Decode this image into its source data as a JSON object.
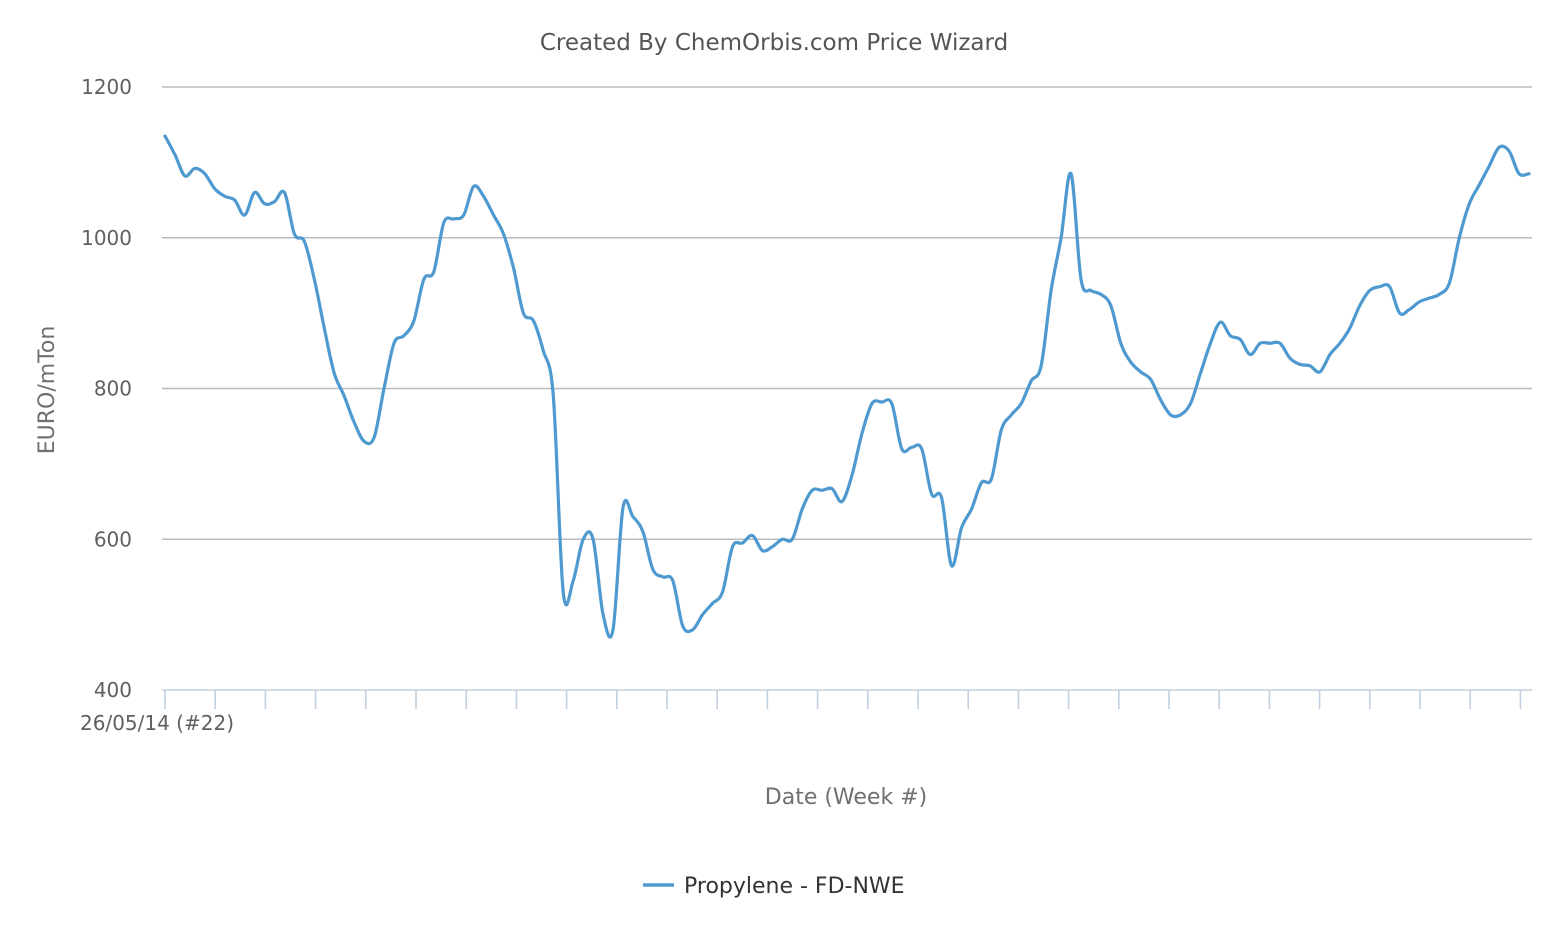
{
  "chart_data": {
    "type": "line",
    "title": "Created By ChemOrbis.com Price Wizard",
    "xlabel": "Date (Week #)",
    "ylabel": "EURO/mTon",
    "x_first_label": "26/05/14 (#22)",
    "ylim": [
      400,
      1200
    ],
    "yticks": [
      400,
      600,
      800,
      1000,
      1200
    ],
    "grid": true,
    "legend_position": "bottom-center",
    "series_color": "#4e99cf",
    "series": [
      {
        "name": "Propylene - FD-NWE",
        "values": [
          1135,
          1110,
          1082,
          1092,
          1085,
          1065,
          1055,
          1050,
          1030,
          1060,
          1045,
          1048,
          1060,
          1005,
          995,
          945,
          880,
          820,
          790,
          755,
          730,
          735,
          800,
          860,
          870,
          890,
          945,
          955,
          1020,
          1025,
          1030,
          1068,
          1055,
          1030,
          1005,
          960,
          900,
          890,
          850,
          790,
          530,
          545,
          600,
          600,
          500,
          480,
          642,
          630,
          610,
          560,
          550,
          545,
          485,
          480,
          500,
          515,
          530,
          590,
          595,
          605,
          585,
          590,
          600,
          600,
          640,
          665,
          665,
          667,
          650,
          685,
          740,
          780,
          782,
          780,
          720,
          722,
          720,
          660,
          655,
          565,
          615,
          640,
          675,
          680,
          745,
          765,
          780,
          810,
          830,
          930,
          1000,
          1085,
          945,
          930,
          925,
          910,
          860,
          835,
          822,
          812,
          785,
          765,
          765,
          780,
          820,
          860,
          888,
          870,
          865,
          845,
          860,
          860,
          860,
          840,
          832,
          830,
          822,
          845,
          860,
          880,
          910,
          930,
          935,
          935,
          900,
          905,
          915,
          920,
          925,
          940,
          1000,
          1045,
          1070,
          1095,
          1120,
          1115,
          1085,
          1085
        ]
      }
    ]
  }
}
